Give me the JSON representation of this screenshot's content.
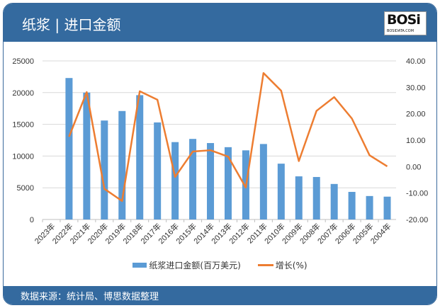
{
  "header": {
    "title": "纸浆 | 进口金额",
    "logo_text": "BOSi",
    "logo_sub": "BOSIDATA.COM"
  },
  "footer": {
    "source": "数据来源：统计局、博思数据整理"
  },
  "colors": {
    "header": "#346a9f",
    "bar": "#5b9bd5",
    "line": "#ed7d31"
  },
  "chart_data": {
    "type": "bar+line",
    "categories": [
      "2023年",
      "2022年",
      "2021年",
      "2020年",
      "2019年",
      "2018年",
      "2017年",
      "2016年",
      "2015年",
      "2014年",
      "2013年",
      "2012年",
      "2011年",
      "2010年",
      "2009年",
      "2008年",
      "2007年",
      "2006年",
      "2005年",
      "2004年"
    ],
    "series": [
      {
        "name": "纸浆进口金额(百万美元)",
        "type": "bar",
        "axis": "left",
        "values": [
          null,
          22300,
          20000,
          15600,
          17100,
          19600,
          15300,
          12200,
          12700,
          12050,
          11400,
          10900,
          11900,
          8800,
          6800,
          6700,
          5600,
          4350,
          3700,
          3600
        ]
      },
      {
        "name": "增长(%)",
        "type": "line",
        "axis": "right",
        "values": [
          null,
          11.3,
          28.2,
          -8.4,
          -13.0,
          28.5,
          25.3,
          -3.9,
          5.7,
          6.2,
          3.8,
          -7.9,
          35.4,
          28.7,
          2.1,
          21.1,
          26.3,
          18.2,
          4.3,
          0.1
        ]
      }
    ],
    "left_axis": {
      "range": [
        0,
        25000
      ],
      "ticks": [
        "0",
        "5000",
        "10000",
        "15000",
        "20000",
        "25000"
      ]
    },
    "right_axis": {
      "range": [
        -20,
        40
      ],
      "ticks": [
        "-20.00",
        "-10.00",
        "0.00",
        "10.00",
        "20.00",
        "30.00",
        "40.00"
      ]
    },
    "grid": true,
    "legend": "bottom"
  }
}
